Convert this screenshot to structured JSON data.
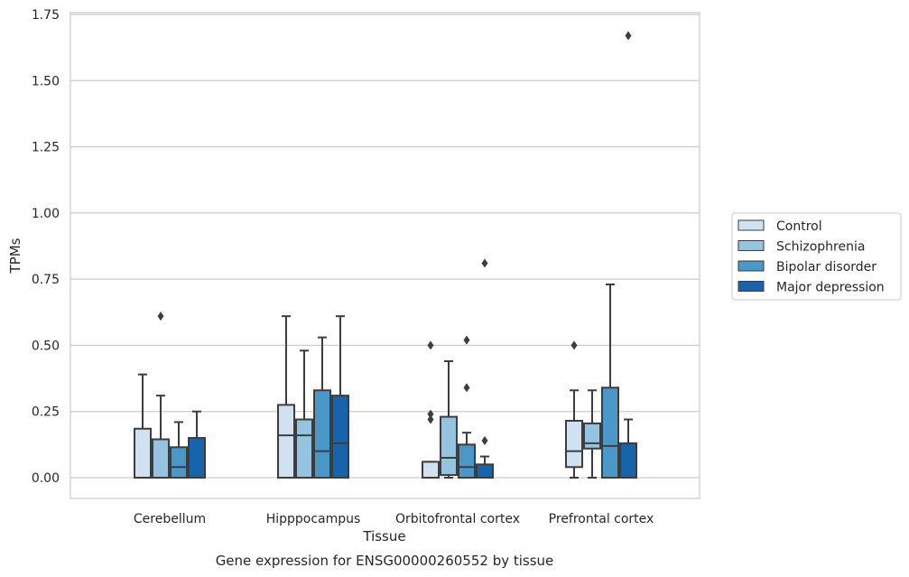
{
  "chart_data": {
    "type": "box",
    "xlabel": "Tissue",
    "ylabel": "TPMs",
    "caption": "Gene expression for ENSG00000260552 by tissue",
    "ylim": [
      -0.08,
      1.75
    ],
    "yticks": [
      0.0,
      0.25,
      0.5,
      0.75,
      1.0,
      1.25,
      1.5,
      1.75
    ],
    "ytick_labels": [
      "0.00",
      "0.25",
      "0.50",
      "0.75",
      "1.00",
      "1.25",
      "1.50",
      "1.75"
    ],
    "grid": "horizontal",
    "legend_position": "right",
    "categories": [
      "Cerebellum",
      "Hipppocampus",
      "Orbitofrontal cortex",
      "Prefrontal cortex"
    ],
    "series": [
      {
        "name": "Control",
        "color": "#d0e1f2",
        "boxes": [
          {
            "whislo": 0.0,
            "q1": 0.0,
            "med": 0.0,
            "q3": 0.185,
            "whishi": 0.39,
            "fliers": []
          },
          {
            "whislo": 0.0,
            "q1": 0.0,
            "med": 0.16,
            "q3": 0.275,
            "whishi": 0.61,
            "fliers": []
          },
          {
            "whislo": 0.0,
            "q1": 0.0,
            "med": 0.0,
            "q3": 0.06,
            "whishi": 0.06,
            "fliers": [
              0.22,
              0.24,
              0.5
            ]
          },
          {
            "whislo": 0.0,
            "q1": 0.04,
            "med": 0.1,
            "q3": 0.215,
            "whishi": 0.33,
            "fliers": [
              0.5
            ]
          }
        ]
      },
      {
        "name": "Schizophrenia",
        "color": "#94c4df",
        "boxes": [
          {
            "whislo": 0.0,
            "q1": 0.0,
            "med": 0.0,
            "q3": 0.145,
            "whishi": 0.31,
            "fliers": [
              0.61
            ]
          },
          {
            "whislo": 0.0,
            "q1": 0.0,
            "med": 0.16,
            "q3": 0.22,
            "whishi": 0.48,
            "fliers": []
          },
          {
            "whislo": 0.0,
            "q1": 0.01,
            "med": 0.075,
            "q3": 0.23,
            "whishi": 0.44,
            "fliers": []
          },
          {
            "whislo": 0.0,
            "q1": 0.11,
            "med": 0.13,
            "q3": 0.205,
            "whishi": 0.33,
            "fliers": []
          }
        ]
      },
      {
        "name": "Bipolar disorder",
        "color": "#4a98c9",
        "boxes": [
          {
            "whislo": 0.0,
            "q1": 0.0,
            "med": 0.04,
            "q3": 0.115,
            "whishi": 0.21,
            "fliers": []
          },
          {
            "whislo": 0.0,
            "q1": 0.0,
            "med": 0.1,
            "q3": 0.33,
            "whishi": 0.53,
            "fliers": []
          },
          {
            "whislo": 0.0,
            "q1": 0.0,
            "med": 0.04,
            "q3": 0.125,
            "whishi": 0.17,
            "fliers": [
              0.34,
              0.52
            ]
          },
          {
            "whislo": 0.0,
            "q1": 0.0,
            "med": 0.12,
            "q3": 0.34,
            "whishi": 0.73,
            "fliers": []
          }
        ]
      },
      {
        "name": "Major depression",
        "color": "#1764ab",
        "boxes": [
          {
            "whislo": 0.0,
            "q1": 0.0,
            "med": 0.0,
            "q3": 0.15,
            "whishi": 0.25,
            "fliers": []
          },
          {
            "whislo": 0.0,
            "q1": 0.0,
            "med": 0.13,
            "q3": 0.31,
            "whishi": 0.61,
            "fliers": []
          },
          {
            "whislo": 0.0,
            "q1": 0.0,
            "med": 0.0,
            "q3": 0.05,
            "whishi": 0.08,
            "fliers": [
              0.14,
              0.81
            ]
          },
          {
            "whislo": 0.0,
            "q1": 0.0,
            "med": 0.0,
            "q3": 0.13,
            "whishi": 0.22,
            "fliers": [
              1.67
            ]
          }
        ]
      }
    ]
  },
  "colors": {
    "grid": "#cccccc",
    "spine": "#cccccc",
    "box_edge": "#3d3d3d",
    "text": "#262626"
  }
}
